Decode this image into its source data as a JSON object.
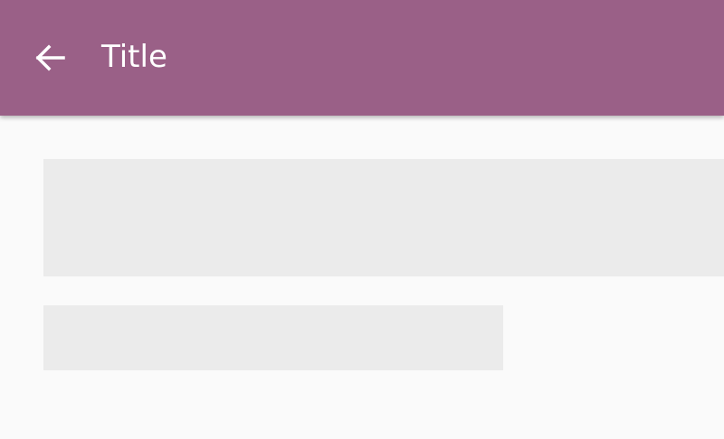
{
  "header": {
    "title": "Title",
    "back_icon": "arrow-back-icon",
    "background_color": "#9a6087"
  },
  "content": {
    "placeholder_color": "#ebebeb"
  }
}
